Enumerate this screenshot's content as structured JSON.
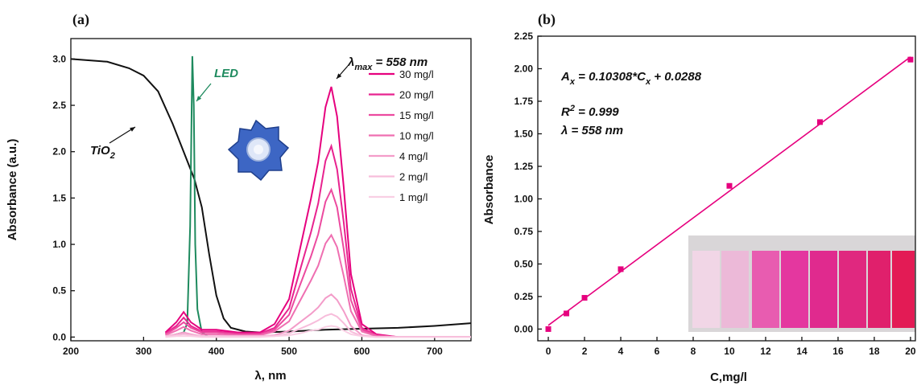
{
  "chart_data": [
    {
      "type": "line",
      "label": "(a)",
      "xlabel": "λ, nm",
      "ylabel": "Absorbance (a.u.)",
      "xlim": [
        200,
        750
      ],
      "ylim": [
        -0.04,
        3.22
      ],
      "xticks": [
        200,
        300,
        400,
        500,
        600,
        700
      ],
      "yticks": [
        {
          "value": 0,
          "label": "0.0"
        },
        0.5,
        {
          "value": 1,
          "label": "1.0"
        },
        1.5,
        {
          "value": 2,
          "label": "2.0"
        },
        2.5,
        {
          "value": 3,
          "label": "3.0"
        }
      ],
      "legend": "upper right",
      "series": [
        {
          "color": "#111111",
          "x": [
            200,
            250,
            280,
            300,
            320,
            340,
            360,
            370,
            380,
            390,
            400,
            410,
            420,
            440,
            460,
            500,
            550,
            600,
            650,
            700,
            750
          ],
          "values": [
            3.0,
            2.97,
            2.9,
            2.82,
            2.65,
            2.3,
            1.9,
            1.7,
            1.4,
            0.9,
            0.45,
            0.2,
            0.1,
            0.06,
            0.05,
            0.06,
            0.08,
            0.09,
            0.1,
            0.12,
            0.15
          ]
        },
        {
          "color": "#1e8a5e",
          "x": [
            340,
            355,
            360,
            364,
            367,
            369,
            371,
            374,
            380,
            390
          ],
          "values": [
            0.02,
            0.05,
            0.15,
            1.2,
            3.03,
            2.5,
            1.0,
            0.3,
            0.05,
            0.0
          ]
        },
        {
          "name": "30 mg/l",
          "color": "#e6007e",
          "x": [
            330,
            345,
            355,
            365,
            380,
            400,
            430,
            460,
            480,
            500,
            515,
            530,
            540,
            550,
            558,
            566,
            575,
            585,
            600,
            620,
            650,
            750
          ],
          "values": [
            0.05,
            0.16,
            0.27,
            0.16,
            0.08,
            0.08,
            0.05,
            0.05,
            0.14,
            0.41,
            0.95,
            1.49,
            1.89,
            2.48,
            2.7,
            2.38,
            1.62,
            0.68,
            0.14,
            0.03,
            0,
            0
          ]
        },
        {
          "name": "20 mg/l",
          "color": "#e8238f",
          "x": [
            330,
            345,
            355,
            365,
            380,
            400,
            430,
            460,
            480,
            500,
            515,
            530,
            540,
            550,
            558,
            566,
            575,
            585,
            600,
            620,
            650,
            750
          ],
          "values": [
            0.04,
            0.12,
            0.21,
            0.12,
            0.06,
            0.06,
            0.04,
            0.04,
            0.1,
            0.31,
            0.72,
            1.13,
            1.44,
            1.9,
            2.06,
            1.81,
            1.24,
            0.52,
            0.1,
            0.02,
            0,
            0
          ]
        },
        {
          "name": "15 mg/l",
          "color": "#ec4a9f",
          "x": [
            330,
            345,
            355,
            365,
            380,
            400,
            430,
            460,
            480,
            500,
            515,
            530,
            540,
            550,
            558,
            566,
            575,
            585,
            600,
            620,
            650,
            750
          ],
          "values": [
            0.03,
            0.1,
            0.16,
            0.1,
            0.05,
            0.05,
            0.03,
            0.03,
            0.08,
            0.24,
            0.56,
            0.87,
            1.11,
            1.46,
            1.59,
            1.4,
            0.95,
            0.4,
            0.08,
            0.02,
            0,
            0
          ]
        },
        {
          "name": "10 mg/l",
          "color": "#ef6fb1",
          "x": [
            330,
            345,
            355,
            365,
            380,
            400,
            430,
            460,
            480,
            500,
            515,
            530,
            540,
            550,
            558,
            566,
            575,
            585,
            600,
            620,
            650,
            750
          ],
          "values": [
            0.02,
            0.07,
            0.11,
            0.07,
            0.03,
            0.03,
            0.02,
            0.02,
            0.06,
            0.17,
            0.39,
            0.61,
            0.77,
            1.01,
            1.1,
            0.97,
            0.66,
            0.28,
            0.06,
            0.01,
            0,
            0
          ]
        },
        {
          "name": "4 mg/l",
          "color": "#f39cc9",
          "x": [
            330,
            345,
            355,
            365,
            380,
            400,
            430,
            460,
            480,
            500,
            515,
            530,
            540,
            550,
            558,
            566,
            575,
            585,
            600,
            620,
            650,
            750
          ],
          "values": [
            0.01,
            0.03,
            0.05,
            0.03,
            0.01,
            0.01,
            0.01,
            0.01,
            0.02,
            0.07,
            0.16,
            0.25,
            0.32,
            0.42,
            0.46,
            0.4,
            0.28,
            0.12,
            0.02,
            0,
            0,
            0
          ]
        },
        {
          "name": "2 mg/l",
          "color": "#f7bddb",
          "x": [
            330,
            345,
            355,
            365,
            380,
            400,
            430,
            460,
            480,
            500,
            515,
            530,
            540,
            550,
            558,
            566,
            575,
            585,
            600,
            620,
            650,
            750
          ],
          "values": [
            0.01,
            0.02,
            0.03,
            0.02,
            0.01,
            0.01,
            0.01,
            0.01,
            0.01,
            0.04,
            0.09,
            0.14,
            0.18,
            0.23,
            0.25,
            0.22,
            0.15,
            0.06,
            0.01,
            0,
            0,
            0
          ]
        },
        {
          "name": "1 mg/l",
          "color": "#f9cfe4",
          "x": [
            330,
            345,
            355,
            365,
            380,
            400,
            430,
            460,
            480,
            500,
            515,
            530,
            540,
            550,
            558,
            566,
            575,
            585,
            600,
            620,
            650,
            750
          ],
          "values": [
            0,
            0.01,
            0.01,
            0.01,
            0,
            0,
            0,
            0,
            0.01,
            0.02,
            0.04,
            0.07,
            0.08,
            0.11,
            0.12,
            0.11,
            0.07,
            0.03,
            0.01,
            0,
            0,
            0
          ]
        }
      ],
      "annotations": [
        {
          "parts": [
            {
              "t": "λ"
            },
            {
              "t": "max",
              "sub": true
            },
            {
              "t": " = 558 nm"
            }
          ]
        },
        {
          "parts": [
            {
              "t": "TiO"
            },
            {
              "t": "2",
              "sub": true
            }
          ]
        },
        {
          "parts": [
            {
              "t": "LED"
            }
          ],
          "color": "#1e8a5e"
        }
      ]
    },
    {
      "type": "scatter",
      "label": "(b)",
      "xlabel": "C,mg/l",
      "ylabel": "Absorbance",
      "xlim": [
        -0.58,
        20.27
      ],
      "ylim": [
        -0.09,
        2.25
      ],
      "xticks": [
        0,
        2,
        4,
        6,
        8,
        10,
        12,
        14,
        16,
        18,
        20
      ],
      "yticks": [
        {
          "value": 0,
          "label": "0.00"
        },
        0.25,
        {
          "value": 0.5,
          "label": "0.50"
        },
        0.75,
        {
          "value": 1,
          "label": "1.00"
        },
        1.25,
        {
          "value": 1.5,
          "label": "1.50"
        },
        1.75,
        {
          "value": 2,
          "label": "2.00"
        },
        2.25
      ],
      "series": [
        {
          "color": "#e6007e",
          "x": [
            0,
            1,
            2,
            4,
            10,
            15,
            20
          ],
          "values": [
            0.0,
            0.12,
            0.24,
            0.46,
            1.1,
            1.59,
            2.07
          ]
        }
      ],
      "fit_line": {
        "color": "#e6007e",
        "x": [
          0,
          20
        ],
        "values": [
          0.0288,
          2.0904
        ]
      },
      "annotations": [
        {
          "parts": [
            {
              "t": "A"
            },
            {
              "t": "x",
              "sub": true
            },
            {
              "t": " = 0.10308*C"
            },
            {
              "t": "x",
              "sub": true
            },
            {
              "t": " + 0.0288"
            }
          ]
        },
        {
          "parts": [
            {
              "t": "R"
            },
            {
              "t": "2",
              "sup": true
            },
            {
              "t": " = 0.999"
            }
          ]
        },
        {
          "parts": [
            {
              "t": "λ = 558 nm"
            }
          ]
        }
      ]
    }
  ]
}
